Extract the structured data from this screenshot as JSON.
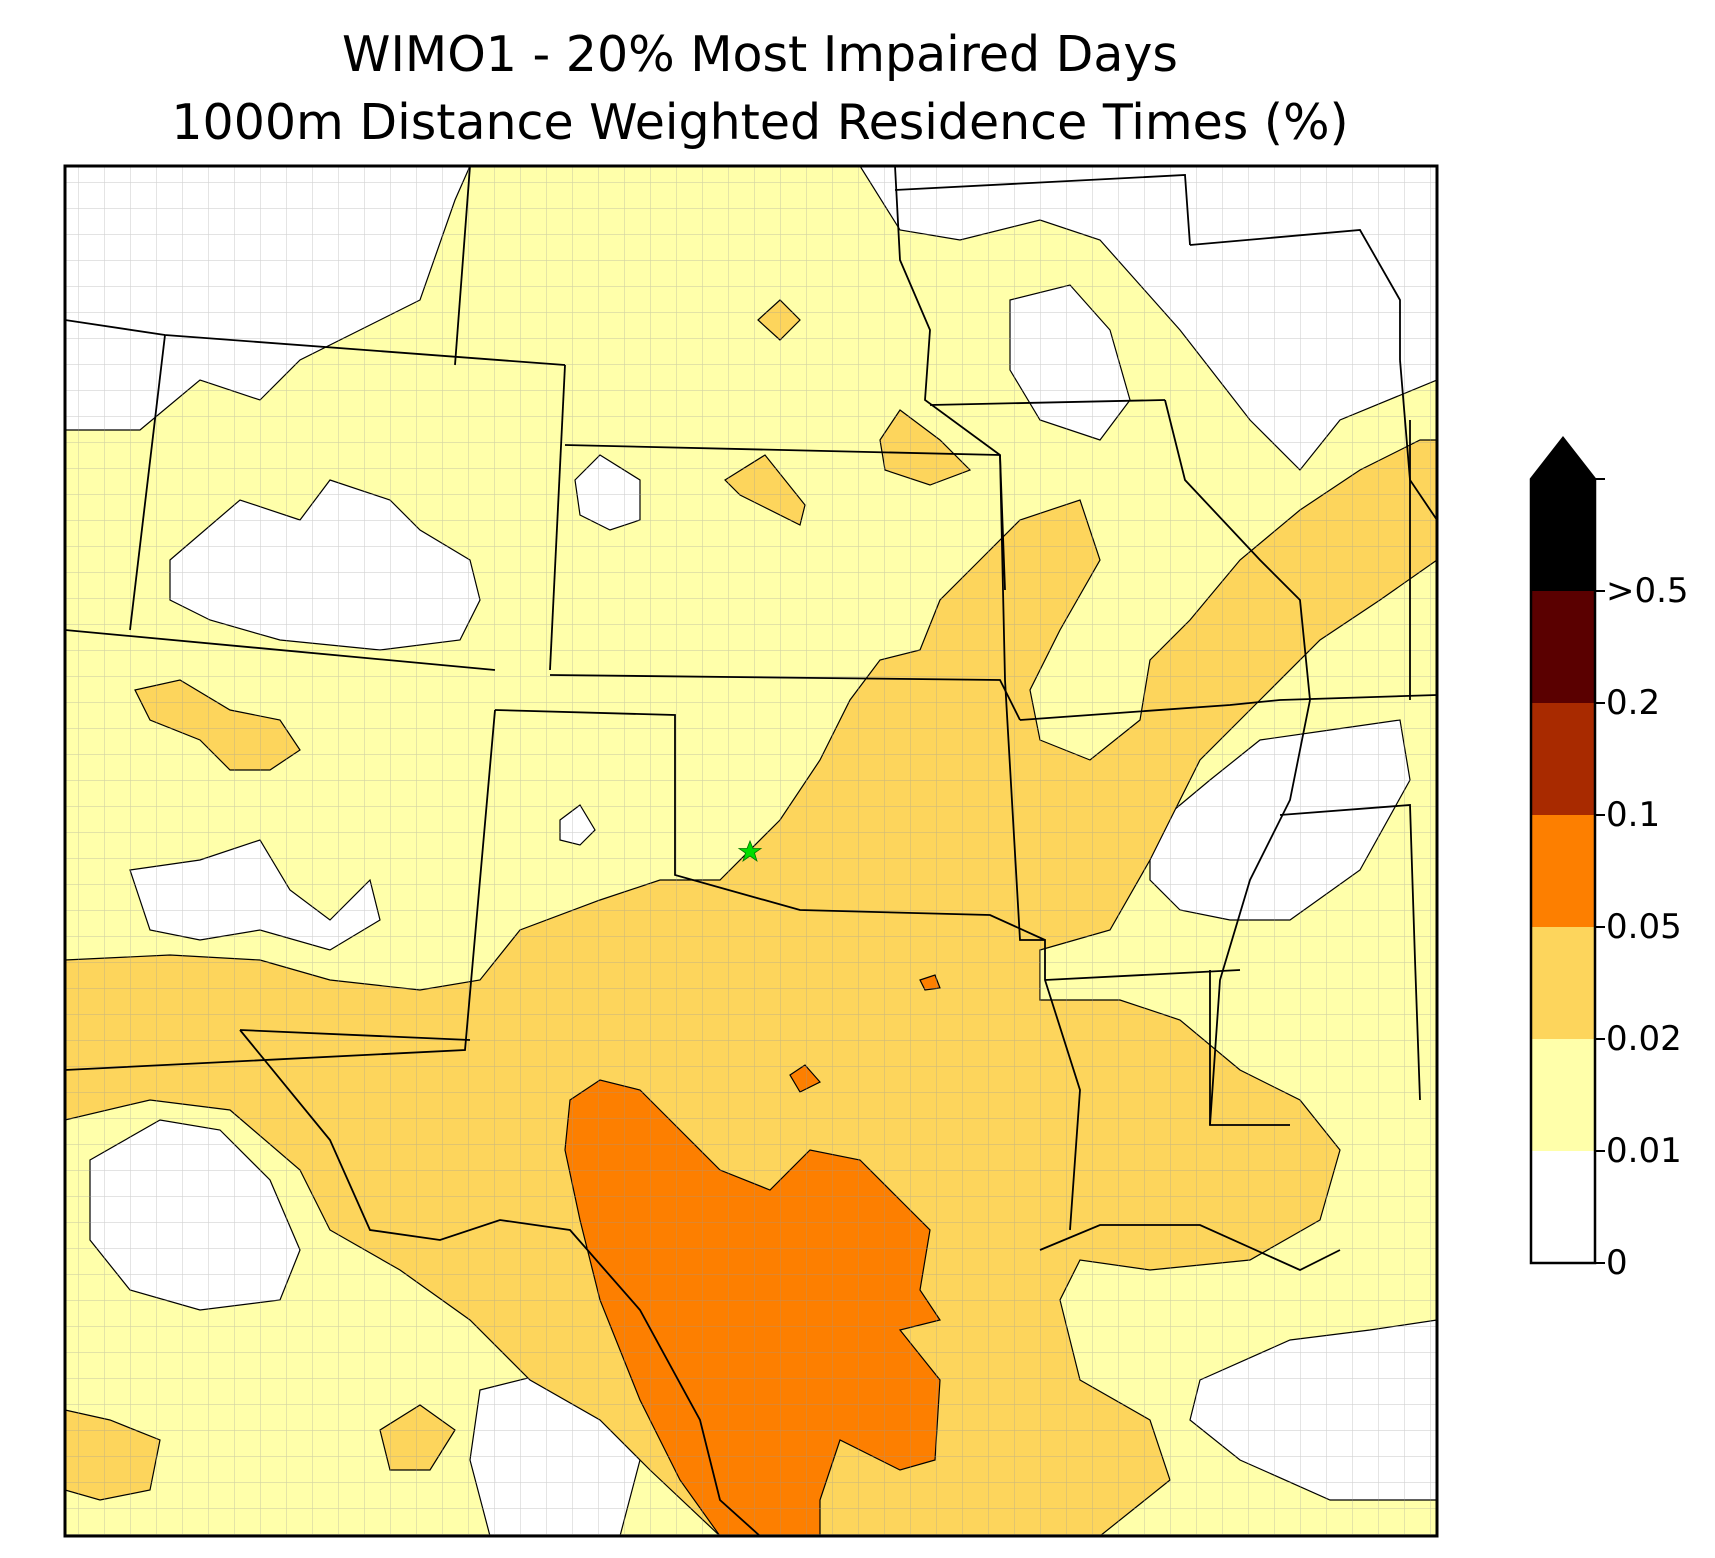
{
  "title": {
    "line1": "WIMO1 - 20% Most Impaired Days",
    "line2": "1000m Distance Weighted Residence Times (%)"
  },
  "colors": {
    "lvl0": "#ffffff",
    "lvl1": "#ffffaa",
    "lvl2": "#fdd55c",
    "lvl3": "#fd7f00",
    "lvl4": "#a82a00",
    "lvl5": "#5a0000",
    "over": "#000000",
    "county": "#9a9a9a",
    "state": "#000000",
    "site_marker": "#00dd00"
  },
  "colorbar": {
    "labels": [
      "0",
      "0.01",
      "0.02",
      "0.05",
      "0.1",
      "0.2",
      ">0.5"
    ]
  },
  "site": {
    "name": "WIMO1",
    "marker": "star-icon"
  }
}
